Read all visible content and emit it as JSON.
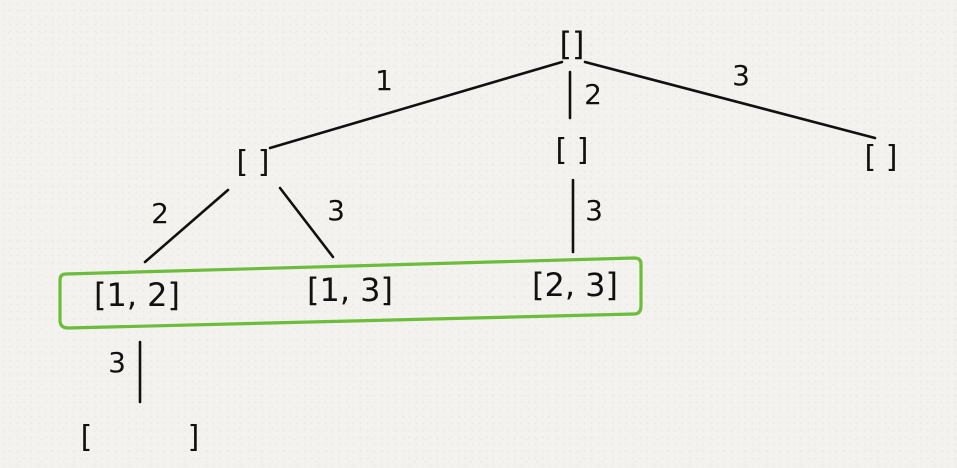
{
  "diagram": {
    "nodes": {
      "root": "[]",
      "level1_a": "[  ]",
      "level1_b": "[  ]",
      "level1_c": "[  ]",
      "level2_a": "[1, 2]",
      "level2_b": "[1, 3]",
      "level2_c": "[2, 3]",
      "level3_a": "[          ]"
    },
    "edge_labels": {
      "root_to_level1_a": "1",
      "root_to_level1_b": "2",
      "root_to_level1_c": "3",
      "level1_a_to_level2_a": "2",
      "level1_a_to_level2_b": "3",
      "level1_b_to_level2_c": "3",
      "level2_a_to_level3_a": "3"
    },
    "highlight_color": "#6cbd3c"
  }
}
